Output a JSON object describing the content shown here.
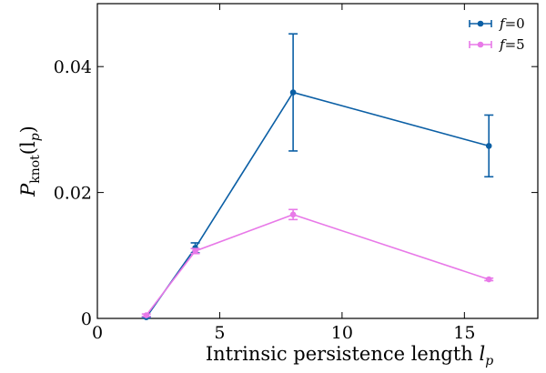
{
  "chart_data": {
    "type": "line",
    "xlabel": "Intrinsic persistence length",
    "xlabel_symbol": "l",
    "xlabel_subscript": "p",
    "ylabel_symbol": "P",
    "ylabel_subscript": "knot",
    "ylabel_argument": "(l",
    "ylabel_argument_subscript": "p",
    "ylabel_close": ")",
    "xlim": [
      0,
      18
    ],
    "ylim": [
      0,
      0.05
    ],
    "xticks": [
      0,
      5,
      10,
      15
    ],
    "xtick_labels": [
      "0",
      "5",
      "10",
      "15"
    ],
    "yticks": [
      0,
      0.02,
      0.04
    ],
    "ytick_labels": [
      "0",
      "0.02",
      "0.04"
    ],
    "legend_position": "top-right",
    "grid": false,
    "series": [
      {
        "name": "f=0",
        "name_symbol": "f",
        "name_value": "=0",
        "color": "#0b5fa5",
        "x": [
          2,
          4,
          8,
          16
        ],
        "y": [
          0.0002,
          0.0112,
          0.0359,
          0.0274
        ],
        "err": [
          0.0001,
          0.0008,
          0.0093,
          0.0049
        ]
      },
      {
        "name": "f=5",
        "name_symbol": "f",
        "name_value": "=5",
        "color": "#e879e8",
        "x": [
          2,
          4,
          8,
          16
        ],
        "y": [
          0.0005,
          0.0107,
          0.0165,
          0.0062
        ],
        "err": [
          0.0002,
          0.0004,
          0.0008,
          0.0002
        ]
      }
    ]
  }
}
